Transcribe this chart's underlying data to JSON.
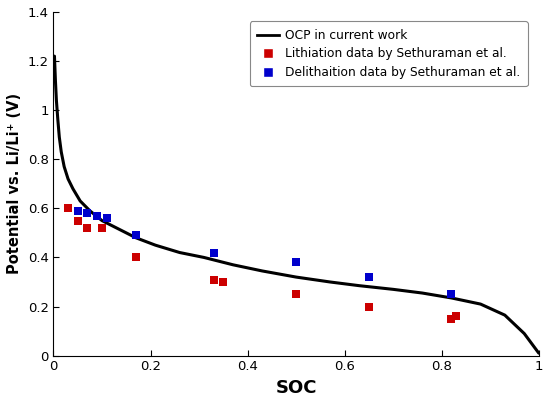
{
  "title": "",
  "xlabel": "SOC",
  "ylabel": "Potential vs. Li/Li⁺ (V)",
  "xlim": [
    0,
    1
  ],
  "ylim": [
    0,
    1.4
  ],
  "yticks": [
    0,
    0.2,
    0.4,
    0.6,
    0.8,
    1.0,
    1.2,
    1.4
  ],
  "xticks": [
    0,
    0.2,
    0.4,
    0.6,
    0.8,
    1.0
  ],
  "ocp_x": [
    0.002,
    0.004,
    0.006,
    0.009,
    0.012,
    0.016,
    0.022,
    0.03,
    0.04,
    0.055,
    0.075,
    0.1,
    0.13,
    0.17,
    0.21,
    0.26,
    0.31,
    0.37,
    0.43,
    0.5,
    0.57,
    0.63,
    0.7,
    0.76,
    0.82,
    0.88,
    0.93,
    0.97,
    1.0
  ],
  "ocp_y": [
    1.22,
    1.12,
    1.04,
    0.96,
    0.89,
    0.83,
    0.77,
    0.72,
    0.68,
    0.63,
    0.59,
    0.55,
    0.52,
    0.48,
    0.45,
    0.42,
    0.4,
    0.37,
    0.345,
    0.32,
    0.3,
    0.285,
    0.27,
    0.255,
    0.235,
    0.21,
    0.165,
    0.09,
    0.01
  ],
  "red_x": [
    0.03,
    0.05,
    0.07,
    0.1,
    0.17,
    0.33,
    0.35,
    0.5,
    0.65,
    0.82,
    0.83
  ],
  "red_y": [
    0.6,
    0.55,
    0.52,
    0.52,
    0.4,
    0.31,
    0.3,
    0.25,
    0.2,
    0.15,
    0.16
  ],
  "blue_x": [
    0.05,
    0.07,
    0.09,
    0.11,
    0.17,
    0.33,
    0.5,
    0.65,
    0.82
  ],
  "blue_y": [
    0.59,
    0.58,
    0.57,
    0.56,
    0.49,
    0.42,
    0.38,
    0.32,
    0.25
  ],
  "line_color": "#000000",
  "red_color": "#cc0000",
  "blue_color": "#0000cc",
  "background_color": "#ffffff",
  "legend_labels": [
    "OCP in current work",
    "Lithiation data by Sethuraman et al.",
    "Delithaition data by Sethuraman et al."
  ],
  "figsize": [
    5.5,
    4.04
  ],
  "dpi": 100
}
